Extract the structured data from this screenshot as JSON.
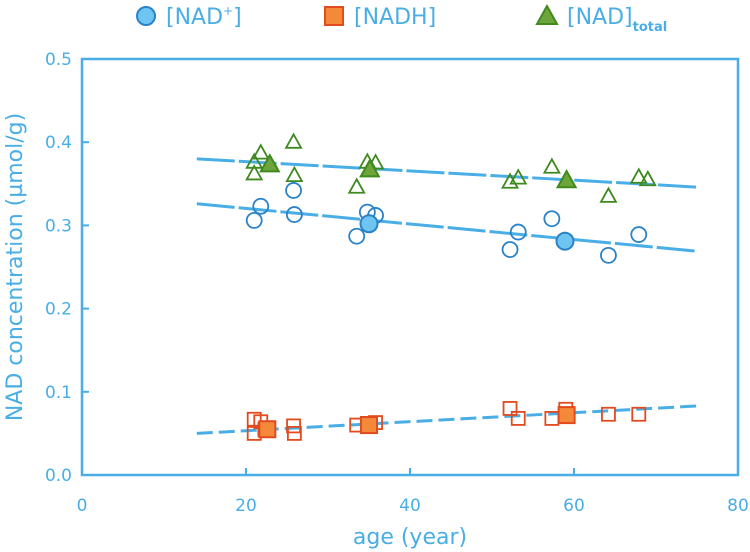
{
  "chart_data": {
    "type": "scatter",
    "xlabel": "age (year)",
    "ylabel": "NAD concentration (µmol/g)",
    "xlim": [
      0,
      80
    ],
    "ylim": [
      0,
      0.5
    ],
    "x_ticks": [
      0,
      20,
      40,
      60,
      80
    ],
    "y_ticks": [
      0.0,
      0.1,
      0.2,
      0.3,
      0.4,
      0.5
    ],
    "x_tick_labels": [
      "0",
      "20",
      "40",
      "60",
      "80"
    ],
    "y_tick_labels": [
      "0.0",
      "0.1",
      "0.2",
      "0.3",
      "0.4",
      "0.5"
    ],
    "grid": false,
    "legend_position": "top",
    "colors": {
      "axis": "#4aaee6",
      "nad_plus_fill": "#6ec5f2",
      "nad_plus_edge": "#2a82c8",
      "nadh_fill": "#f4893a",
      "nadh_edge": "#e24a1f",
      "total_fill": "#6ea53a",
      "total_edge": "#3f8a1f",
      "trend": "#4aaee6"
    },
    "legend": [
      {
        "series": "nad_plus",
        "marker": "circle",
        "base": "[NAD",
        "sup": "+",
        "close": "]",
        "sub": ""
      },
      {
        "series": "nadh",
        "marker": "square",
        "base": "[NADH",
        "sup": "",
        "close": "]",
        "sub": ""
      },
      {
        "series": "nad_total",
        "marker": "triangle",
        "base": "[NAD",
        "sup": "",
        "close": "]",
        "sub": "total"
      }
    ],
    "series": [
      {
        "name": "[NAD+]",
        "key": "nad_plus",
        "marker": "circle",
        "points": [
          {
            "x": 21.0,
            "y": 0.306
          },
          {
            "x": 21.8,
            "y": 0.323
          },
          {
            "x": 25.8,
            "y": 0.342
          },
          {
            "x": 25.9,
            "y": 0.313
          },
          {
            "x": 33.5,
            "y": 0.287
          },
          {
            "x": 34.8,
            "y": 0.316
          },
          {
            "x": 35.8,
            "y": 0.312
          },
          {
            "x": 52.2,
            "y": 0.271
          },
          {
            "x": 53.2,
            "y": 0.292
          },
          {
            "x": 57.3,
            "y": 0.308
          },
          {
            "x": 64.2,
            "y": 0.264
          },
          {
            "x": 67.9,
            "y": 0.289
          }
        ],
        "means": [
          {
            "x": 35.0,
            "y": 0.302
          },
          {
            "x": 58.9,
            "y": 0.281
          }
        ],
        "trend": {
          "x1": 14,
          "y1": 0.326,
          "x2": 75,
          "y2": 0.269
        }
      },
      {
        "name": "[NADH]",
        "key": "nadh",
        "marker": "square",
        "points": [
          {
            "x": 21.0,
            "y": 0.067
          },
          {
            "x": 21.0,
            "y": 0.05
          },
          {
            "x": 21.8,
            "y": 0.064
          },
          {
            "x": 22.3,
            "y": 0.055
          },
          {
            "x": 25.8,
            "y": 0.059
          },
          {
            "x": 25.9,
            "y": 0.05
          },
          {
            "x": 33.5,
            "y": 0.06
          },
          {
            "x": 34.8,
            "y": 0.062
          },
          {
            "x": 35.8,
            "y": 0.063
          },
          {
            "x": 52.2,
            "y": 0.08
          },
          {
            "x": 53.2,
            "y": 0.068
          },
          {
            "x": 57.3,
            "y": 0.068
          },
          {
            "x": 59.0,
            "y": 0.079
          },
          {
            "x": 64.2,
            "y": 0.073
          },
          {
            "x": 67.9,
            "y": 0.073
          }
        ],
        "means": [
          {
            "x": 22.6,
            "y": 0.055
          },
          {
            "x": 35.0,
            "y": 0.06
          },
          {
            "x": 59.1,
            "y": 0.072
          }
        ],
        "trend": {
          "x1": 14,
          "y1": 0.05,
          "x2": 75,
          "y2": 0.083
        }
      },
      {
        "name": "[NAD]total",
        "key": "nad_total",
        "marker": "triangle",
        "points": [
          {
            "x": 21.0,
            "y": 0.376
          },
          {
            "x": 21.0,
            "y": 0.362
          },
          {
            "x": 21.8,
            "y": 0.387
          },
          {
            "x": 25.8,
            "y": 0.4
          },
          {
            "x": 25.9,
            "y": 0.36
          },
          {
            "x": 33.5,
            "y": 0.346
          },
          {
            "x": 34.8,
            "y": 0.376
          },
          {
            "x": 35.8,
            "y": 0.375
          },
          {
            "x": 52.2,
            "y": 0.352
          },
          {
            "x": 53.2,
            "y": 0.357
          },
          {
            "x": 57.3,
            "y": 0.37
          },
          {
            "x": 64.2,
            "y": 0.335
          },
          {
            "x": 67.9,
            "y": 0.358
          },
          {
            "x": 69.0,
            "y": 0.355
          }
        ],
        "means": [
          {
            "x": 22.9,
            "y": 0.373
          },
          {
            "x": 35.1,
            "y": 0.367
          },
          {
            "x": 59.1,
            "y": 0.354
          }
        ],
        "trend": {
          "x1": 14,
          "y1": 0.38,
          "x2": 75,
          "y2": 0.346
        }
      }
    ]
  }
}
